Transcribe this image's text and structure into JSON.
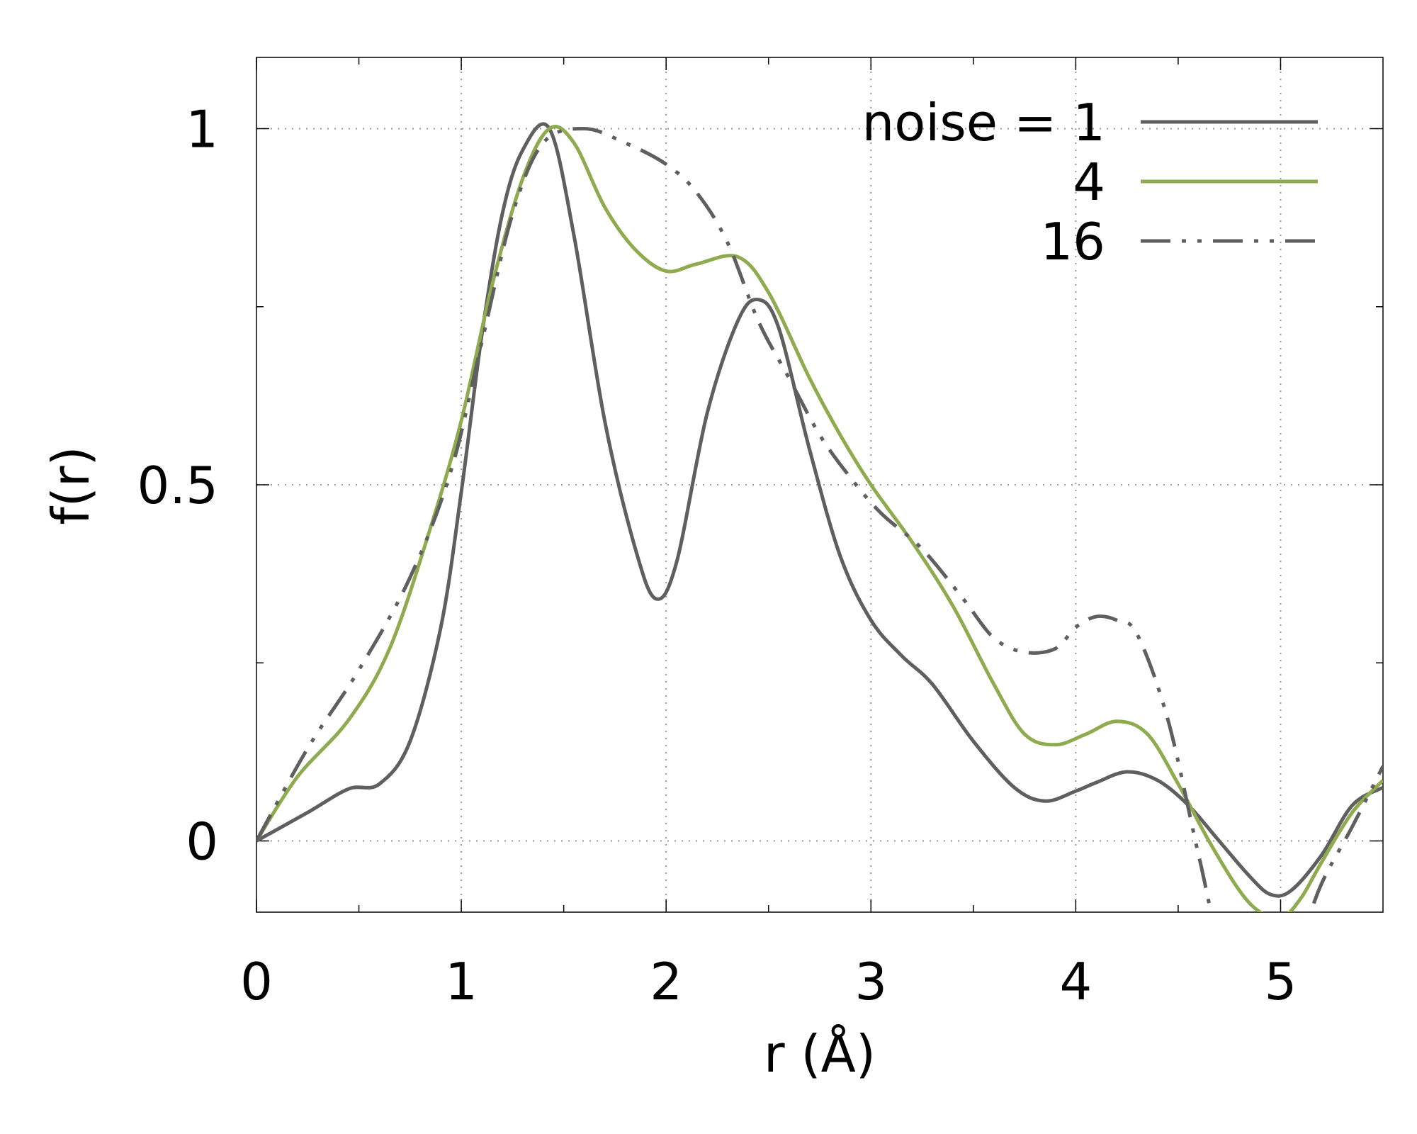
{
  "chart_data": {
    "type": "line",
    "xlabel": "r (Å)",
    "ylabel": "f(r)",
    "xlim": [
      0,
      5.5
    ],
    "ylim": [
      -0.1,
      1.1
    ],
    "xticks": [
      0,
      1,
      2,
      3,
      4,
      5
    ],
    "xtick_labels": [
      "0",
      "1",
      "2",
      "3",
      "4",
      "5"
    ],
    "yticks": [
      0,
      0.5,
      1
    ],
    "ytick_labels": [
      "0",
      "0.5",
      "1"
    ],
    "ytick_minor": [
      0.25,
      0.75
    ],
    "xtick_minor": [
      0.5,
      1.5,
      2.5,
      3.5,
      4.5
    ],
    "grid": true,
    "legend_position": "top-right",
    "series": [
      {
        "name": "noise = 1",
        "color": "#5f5f5f",
        "dash": "solid",
        "x": [
          0,
          0.25,
          0.45,
          0.6,
          0.75,
          0.9,
          1.0,
          1.1,
          1.2,
          1.3,
          1.43,
          1.55,
          1.7,
          1.85,
          1.95,
          2.05,
          2.2,
          2.35,
          2.45,
          2.55,
          2.7,
          2.85,
          3.0,
          3.15,
          3.3,
          3.5,
          3.7,
          3.85,
          4.0,
          4.1,
          4.25,
          4.4,
          4.55,
          4.7,
          4.85,
          4.95,
          5.05,
          5.2,
          5.35,
          5.5
        ],
        "y": [
          0,
          0.04,
          0.073,
          0.08,
          0.14,
          0.3,
          0.49,
          0.71,
          0.88,
          0.97,
          1.0,
          0.85,
          0.59,
          0.41,
          0.34,
          0.39,
          0.6,
          0.73,
          0.76,
          0.72,
          0.55,
          0.4,
          0.31,
          0.26,
          0.22,
          0.14,
          0.075,
          0.056,
          0.07,
          0.082,
          0.097,
          0.085,
          0.05,
          0.0,
          -0.05,
          -0.075,
          -0.07,
          -0.02,
          0.05,
          0.075
        ]
      },
      {
        "name": "4",
        "color": "#8fab4f",
        "dash": "solid",
        "x": [
          0,
          0.2,
          0.45,
          0.65,
          0.85,
          1.0,
          1.15,
          1.3,
          1.43,
          1.55,
          1.7,
          1.85,
          2.0,
          2.15,
          2.35,
          2.5,
          2.7,
          2.85,
          3.0,
          3.2,
          3.4,
          3.6,
          3.75,
          3.9,
          4.05,
          4.2,
          4.35,
          4.5,
          4.65,
          4.8,
          4.9,
          5.0,
          5.1,
          5.2,
          5.35,
          5.5
        ],
        "y": [
          0,
          0.09,
          0.17,
          0.27,
          0.44,
          0.59,
          0.78,
          0.93,
          1.0,
          0.98,
          0.89,
          0.83,
          0.8,
          0.81,
          0.82,
          0.77,
          0.65,
          0.57,
          0.5,
          0.42,
          0.33,
          0.22,
          0.15,
          0.135,
          0.15,
          0.168,
          0.15,
          0.08,
          0.0,
          -0.07,
          -0.1,
          -0.11,
          -0.08,
          -0.03,
          0.04,
          0.085
        ]
      },
      {
        "name": "16",
        "color": "#5f5f5f",
        "dash": "dash-dot-dot",
        "x": [
          0,
          0.25,
          0.5,
          0.75,
          0.95,
          1.1,
          1.25,
          1.4,
          1.6,
          1.8,
          2.0,
          2.15,
          2.3,
          2.45,
          2.6,
          2.75,
          2.9,
          3.05,
          3.25,
          3.45,
          3.6,
          3.75,
          3.9,
          4.0,
          4.1,
          4.2,
          4.3,
          4.45,
          4.6,
          4.75,
          4.9,
          5.0,
          5.1,
          5.2,
          5.35,
          5.5
        ],
        "y": [
          0,
          0.13,
          0.24,
          0.37,
          0.52,
          0.7,
          0.88,
          0.98,
          1.0,
          0.98,
          0.95,
          0.91,
          0.84,
          0.73,
          0.65,
          0.57,
          0.51,
          0.46,
          0.41,
          0.34,
          0.285,
          0.265,
          0.27,
          0.3,
          0.315,
          0.31,
          0.29,
          0.17,
          -0.02,
          -0.2,
          -0.23,
          -0.21,
          -0.14,
          -0.06,
          0.02,
          0.105
        ]
      }
    ]
  }
}
